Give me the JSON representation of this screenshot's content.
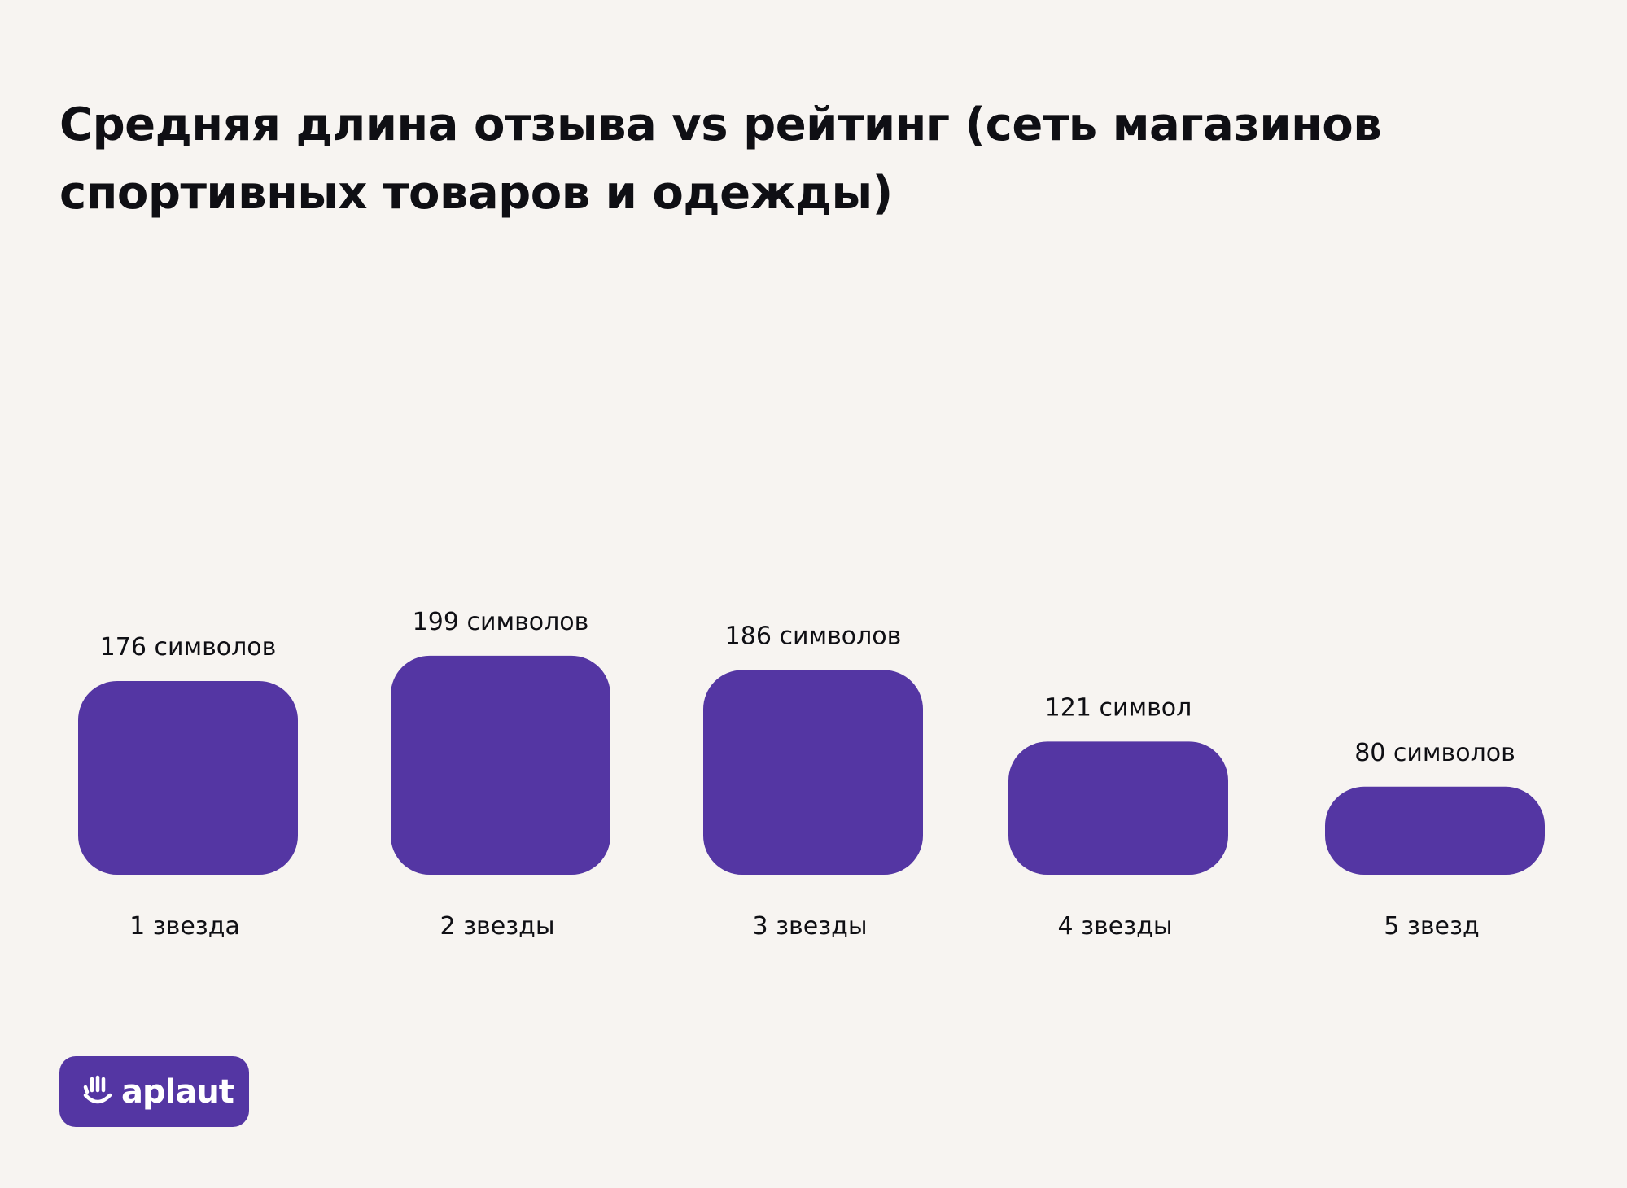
{
  "colors": {
    "background": "#f7f4f1",
    "bar": "#5436a3",
    "text": "#0f0f14",
    "logo_background": "#5436a3",
    "logo_text": "#ffffff"
  },
  "logo": {
    "text": "aplaut",
    "icon": "clapping-hand-icon"
  },
  "chart_data": {
    "type": "bar",
    "title": "Средняя длина отзыва vs рейтинг (сеть магазинов спортивных товаров и одежды)",
    "categories": [
      "1 звезда",
      "2 звезды",
      "3 звезды",
      "4 звезды",
      "5 звезд"
    ],
    "values": [
      176,
      199,
      186,
      121,
      80
    ],
    "value_labels": [
      "176 символов",
      "199 символов",
      "186 символов",
      "121 символ",
      "80 символов"
    ],
    "xlabel": "",
    "ylabel": "",
    "grid": false,
    "legend": "none"
  }
}
